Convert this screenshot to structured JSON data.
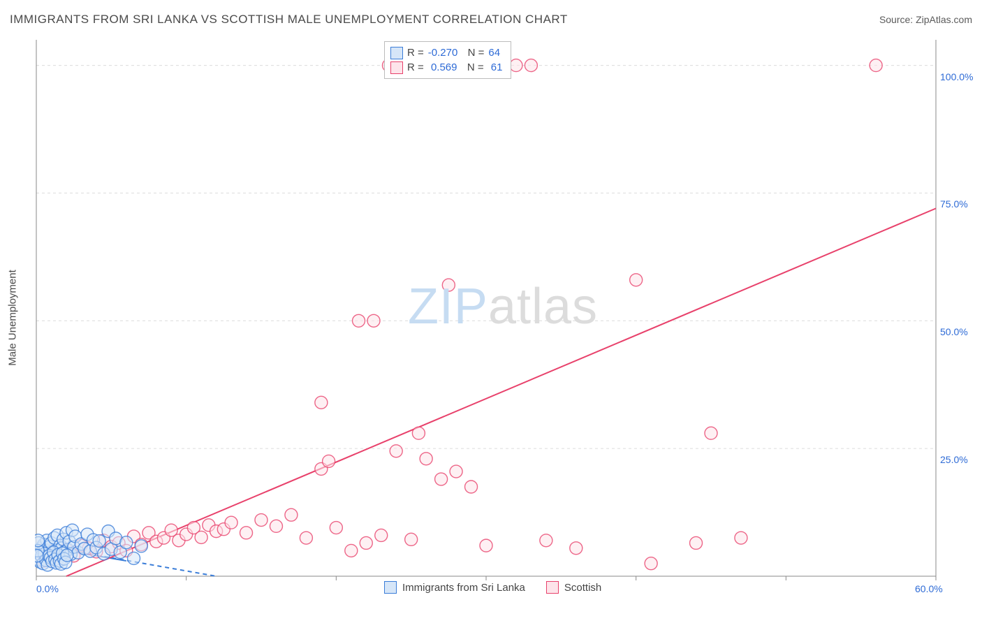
{
  "title": "IMMIGRANTS FROM SRI LANKA VS SCOTTISH MALE UNEMPLOYMENT CORRELATION CHART",
  "source": "Source: ZipAtlas.com",
  "ylabel": "Male Unemployment",
  "watermark": {
    "part1": "ZIP",
    "part2": "atlas"
  },
  "series": [
    {
      "name": "Immigrants from Sri Lanka",
      "color_fill": "#d6e6f8",
      "color_stroke": "#3b7dd8",
      "R": "-0.270",
      "N": "64",
      "trend": {
        "x1": 0,
        "y1": 6.2,
        "x2": 12,
        "y2": 0,
        "dashed": true
      },
      "trend_solid": {
        "x1": 0,
        "y1": 6,
        "x2": 6,
        "y2": 3
      },
      "points": [
        {
          "x": 0.3,
          "y": 5.5
        },
        {
          "x": 0.4,
          "y": 4.8
        },
        {
          "x": 0.5,
          "y": 6.2
        },
        {
          "x": 0.6,
          "y": 5.1
        },
        {
          "x": 0.7,
          "y": 7.0
        },
        {
          "x": 0.8,
          "y": 4.2
        },
        {
          "x": 0.9,
          "y": 5.8
        },
        {
          "x": 1.0,
          "y": 6.5
        },
        {
          "x": 1.1,
          "y": 4.5
        },
        {
          "x": 1.2,
          "y": 7.5
        },
        {
          "x": 1.3,
          "y": 5.0
        },
        {
          "x": 1.4,
          "y": 8.0
        },
        {
          "x": 1.5,
          "y": 4.0
        },
        {
          "x": 1.6,
          "y": 6.0
        },
        {
          "x": 1.7,
          "y": 5.5
        },
        {
          "x": 1.8,
          "y": 7.2
        },
        {
          "x": 1.9,
          "y": 4.8
        },
        {
          "x": 2.0,
          "y": 8.5
        },
        {
          "x": 2.1,
          "y": 5.2
        },
        {
          "x": 2.2,
          "y": 6.8
        },
        {
          "x": 2.3,
          "y": 4.3
        },
        {
          "x": 2.4,
          "y": 9.0
        },
        {
          "x": 2.5,
          "y": 5.7
        },
        {
          "x": 2.6,
          "y": 7.8
        },
        {
          "x": 2.8,
          "y": 4.6
        },
        {
          "x": 3.0,
          "y": 6.3
        },
        {
          "x": 3.2,
          "y": 5.4
        },
        {
          "x": 3.4,
          "y": 8.2
        },
        {
          "x": 3.6,
          "y": 4.9
        },
        {
          "x": 3.8,
          "y": 7.1
        },
        {
          "x": 4.0,
          "y": 5.6
        },
        {
          "x": 4.2,
          "y": 6.9
        },
        {
          "x": 4.5,
          "y": 4.4
        },
        {
          "x": 4.8,
          "y": 8.8
        },
        {
          "x": 5.0,
          "y": 5.3
        },
        {
          "x": 5.3,
          "y": 7.4
        },
        {
          "x": 5.6,
          "y": 4.7
        },
        {
          "x": 6.0,
          "y": 6.6
        },
        {
          "x": 6.5,
          "y": 3.5
        },
        {
          "x": 7.0,
          "y": 5.9
        },
        {
          "x": 0.2,
          "y": 3.2
        },
        {
          "x": 0.25,
          "y": 2.8
        },
        {
          "x": 0.35,
          "y": 3.9
        },
        {
          "x": 0.45,
          "y": 2.5
        },
        {
          "x": 0.55,
          "y": 4.4
        },
        {
          "x": 0.65,
          "y": 3.1
        },
        {
          "x": 0.75,
          "y": 2.2
        },
        {
          "x": 0.85,
          "y": 4.0
        },
        {
          "x": 0.95,
          "y": 3.6
        },
        {
          "x": 1.05,
          "y": 2.9
        },
        {
          "x": 1.15,
          "y": 4.7
        },
        {
          "x": 1.25,
          "y": 3.3
        },
        {
          "x": 1.35,
          "y": 2.6
        },
        {
          "x": 1.45,
          "y": 4.2
        },
        {
          "x": 1.55,
          "y": 3.0
        },
        {
          "x": 1.65,
          "y": 2.4
        },
        {
          "x": 1.75,
          "y": 4.5
        },
        {
          "x": 1.85,
          "y": 3.4
        },
        {
          "x": 1.95,
          "y": 2.7
        },
        {
          "x": 2.05,
          "y": 4.1
        },
        {
          "x": 0.15,
          "y": 6.5
        },
        {
          "x": 0.1,
          "y": 5.0
        },
        {
          "x": 0.05,
          "y": 4.0
        },
        {
          "x": 0.12,
          "y": 7.0
        }
      ]
    },
    {
      "name": "Scottish",
      "color_fill": "#fde4ea",
      "color_stroke": "#e8416b",
      "R": "0.569",
      "N": "61",
      "trend": {
        "x1": 2,
        "y1": 0,
        "x2": 60,
        "y2": 72,
        "dashed": false
      },
      "points": [
        {
          "x": 0.5,
          "y": 3.0
        },
        {
          "x": 1.0,
          "y": 4.5
        },
        {
          "x": 1.5,
          "y": 3.8
        },
        {
          "x": 2.0,
          "y": 5.2
        },
        {
          "x": 2.5,
          "y": 4.0
        },
        {
          "x": 3.0,
          "y": 6.0
        },
        {
          "x": 3.5,
          "y": 5.5
        },
        {
          "x": 4.0,
          "y": 4.8
        },
        {
          "x": 4.5,
          "y": 7.0
        },
        {
          "x": 5.0,
          "y": 5.8
        },
        {
          "x": 5.5,
          "y": 6.5
        },
        {
          "x": 6.0,
          "y": 5.0
        },
        {
          "x": 6.5,
          "y": 7.8
        },
        {
          "x": 7.0,
          "y": 6.2
        },
        {
          "x": 7.5,
          "y": 8.5
        },
        {
          "x": 8.0,
          "y": 6.8
        },
        {
          "x": 8.5,
          "y": 7.5
        },
        {
          "x": 9.0,
          "y": 9.0
        },
        {
          "x": 9.5,
          "y": 7.0
        },
        {
          "x": 10.0,
          "y": 8.2
        },
        {
          "x": 10.5,
          "y": 9.5
        },
        {
          "x": 11.0,
          "y": 7.6
        },
        {
          "x": 11.5,
          "y": 10.0
        },
        {
          "x": 12.0,
          "y": 8.8
        },
        {
          "x": 12.5,
          "y": 9.2
        },
        {
          "x": 13.0,
          "y": 10.5
        },
        {
          "x": 14.0,
          "y": 8.5
        },
        {
          "x": 15.0,
          "y": 11.0
        },
        {
          "x": 16.0,
          "y": 9.8
        },
        {
          "x": 17.0,
          "y": 12.0
        },
        {
          "x": 18.0,
          "y": 7.5
        },
        {
          "x": 19.0,
          "y": 21.0
        },
        {
          "x": 19.5,
          "y": 22.5
        },
        {
          "x": 21.0,
          "y": 5.0
        },
        {
          "x": 21.5,
          "y": 50.0
        },
        {
          "x": 22.0,
          "y": 6.5
        },
        {
          "x": 22.5,
          "y": 50.0
        },
        {
          "x": 23.0,
          "y": 8.0
        },
        {
          "x": 23.5,
          "y": 100.0
        },
        {
          "x": 24.0,
          "y": 24.5
        },
        {
          "x": 25.0,
          "y": 7.2
        },
        {
          "x": 25.5,
          "y": 28.0
        },
        {
          "x": 26.0,
          "y": 23.0
        },
        {
          "x": 27.0,
          "y": 19.0
        },
        {
          "x": 27.5,
          "y": 57.0
        },
        {
          "x": 28.0,
          "y": 20.5
        },
        {
          "x": 29.0,
          "y": 17.5
        },
        {
          "x": 30.0,
          "y": 6.0
        },
        {
          "x": 30.5,
          "y": 100.0
        },
        {
          "x": 32.0,
          "y": 100.0
        },
        {
          "x": 33.0,
          "y": 100.0
        },
        {
          "x": 34.0,
          "y": 7.0
        },
        {
          "x": 36.0,
          "y": 5.5
        },
        {
          "x": 40.0,
          "y": 58.0
        },
        {
          "x": 41.0,
          "y": 2.5
        },
        {
          "x": 44.0,
          "y": 6.5
        },
        {
          "x": 45.0,
          "y": 28.0
        },
        {
          "x": 47.0,
          "y": 7.5
        },
        {
          "x": 56.0,
          "y": 100.0
        },
        {
          "x": 19.0,
          "y": 34.0
        },
        {
          "x": 20.0,
          "y": 9.5
        }
      ]
    }
  ],
  "chart": {
    "type": "scatter",
    "xlim": [
      0,
      60
    ],
    "ylim": [
      0,
      105
    ],
    "background_color": "#ffffff",
    "grid_color": "#dcdcdc",
    "axis_color": "#888888",
    "tick_color": "#2e6bd6",
    "y_gridlines": [
      25,
      50,
      75,
      100
    ],
    "x_ticks": [
      {
        "v": 0,
        "l": "0.0%"
      },
      {
        "v": 10,
        "l": ""
      },
      {
        "v": 20,
        "l": ""
      },
      {
        "v": 30,
        "l": ""
      },
      {
        "v": 40,
        "l": ""
      },
      {
        "v": 50,
        "l": ""
      },
      {
        "v": 60,
        "l": "60.0%"
      }
    ],
    "y_ticks": [
      {
        "v": 25,
        "l": "25.0%"
      },
      {
        "v": 50,
        "l": "50.0%"
      },
      {
        "v": 75,
        "l": "75.0%"
      },
      {
        "v": 100,
        "l": "100.0%"
      }
    ],
    "marker_radius": 9,
    "marker_stroke_width": 1.4,
    "trend_width": 2
  }
}
